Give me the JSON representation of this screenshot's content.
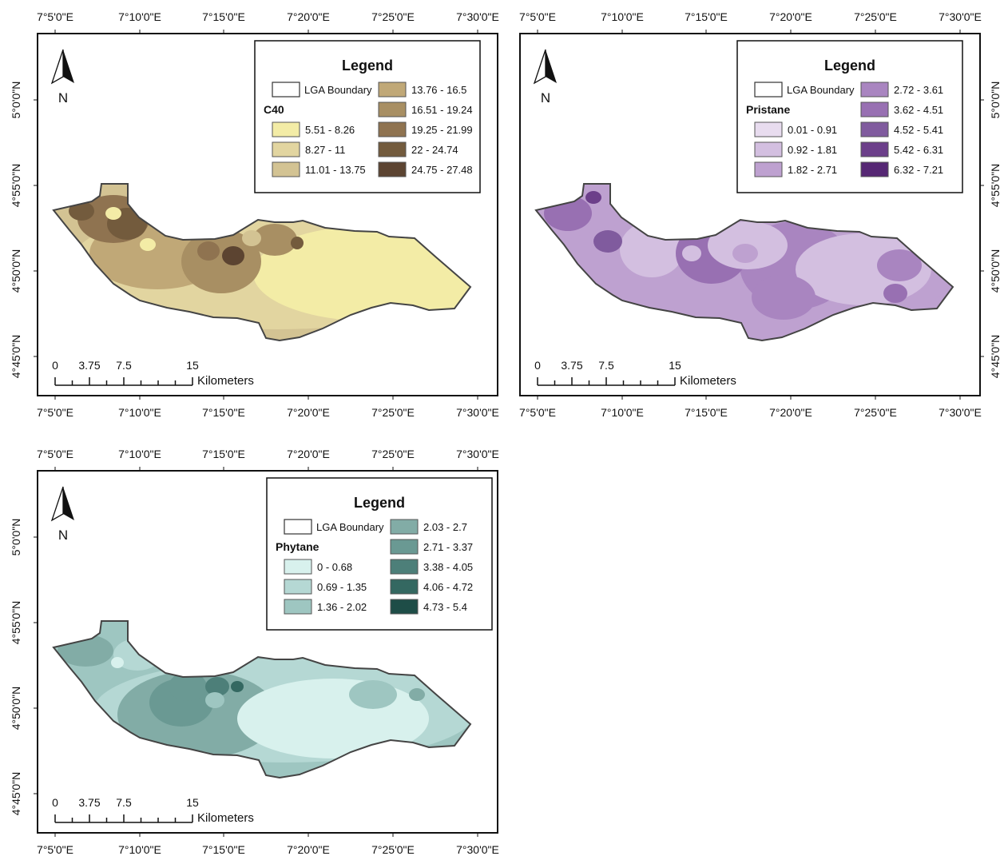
{
  "coordinates": {
    "top_labels": [
      "7°5'0\"E",
      "7°10'0\"E",
      "7°15'0\"E",
      "7°20'0\"E",
      "7°25'0\"E",
      "7°30'0\"E"
    ],
    "bottom_labels": [
      "7°5'0\"E",
      "7°10'0\"E",
      "7°15'0\"E",
      "7°20'0\"E",
      "7°25'0\"E",
      "7°30'0\"E"
    ],
    "lat_labels": [
      "5°0'0\"N",
      "4°55'0\"N",
      "4°50'0\"N",
      "4°45'0\"N"
    ]
  },
  "north_arrow_label": "N",
  "scale_bar": {
    "ticks": [
      "0",
      "3.75",
      "7.5",
      "15"
    ],
    "unit": "Kilometers"
  },
  "maps": [
    {
      "id": "c40",
      "legend_title": "Legend",
      "boundary_label": "LGA Boundary",
      "variable": "C40",
      "classes": [
        "5.51 - 8.26",
        "8.27 - 11",
        "11.01 - 13.75",
        "13.76 - 16.5",
        "16.51 - 19.24",
        "19.25 - 21.99",
        "22 - 24.74",
        "24.75 - 27.48"
      ],
      "colors": [
        "#f3eca6",
        "#e2d5a0",
        "#d3c393",
        "#c0a877",
        "#a88f63",
        "#8f7350",
        "#735b3d",
        "#5c4431"
      ]
    },
    {
      "id": "pristane",
      "legend_title": "Legend",
      "boundary_label": "LGA Boundary",
      "variable": "Pristane",
      "classes": [
        "0.01 - 0.91",
        "0.92 - 1.81",
        "1.82 - 2.71",
        "2.72 - 3.61",
        "3.62 - 4.51",
        "4.52 - 5.41",
        "5.42 - 6.31",
        "6.32 - 7.21"
      ],
      "colors": [
        "#e8dcef",
        "#d3bfe0",
        "#bea1d0",
        "#a985c0",
        "#9870b2",
        "#805b9e",
        "#6c3f8a",
        "#562774"
      ]
    },
    {
      "id": "phytane",
      "legend_title": "Legend",
      "boundary_label": "LGA Boundary",
      "variable": "Phytane",
      "classes": [
        "0 - 0.68",
        "0.69 - 1.35",
        "1.36 - 2.02",
        "2.03 - 2.7",
        "2.71 - 3.37",
        "3.38 - 4.05",
        "4.06 - 4.72",
        "4.73 - 5.4"
      ],
      "colors": [
        "#d8f1ed",
        "#b5d8d4",
        "#9ec6c1",
        "#82aca6",
        "#6a9993",
        "#4d7f79",
        "#346861",
        "#1e4d47"
      ]
    }
  ]
}
